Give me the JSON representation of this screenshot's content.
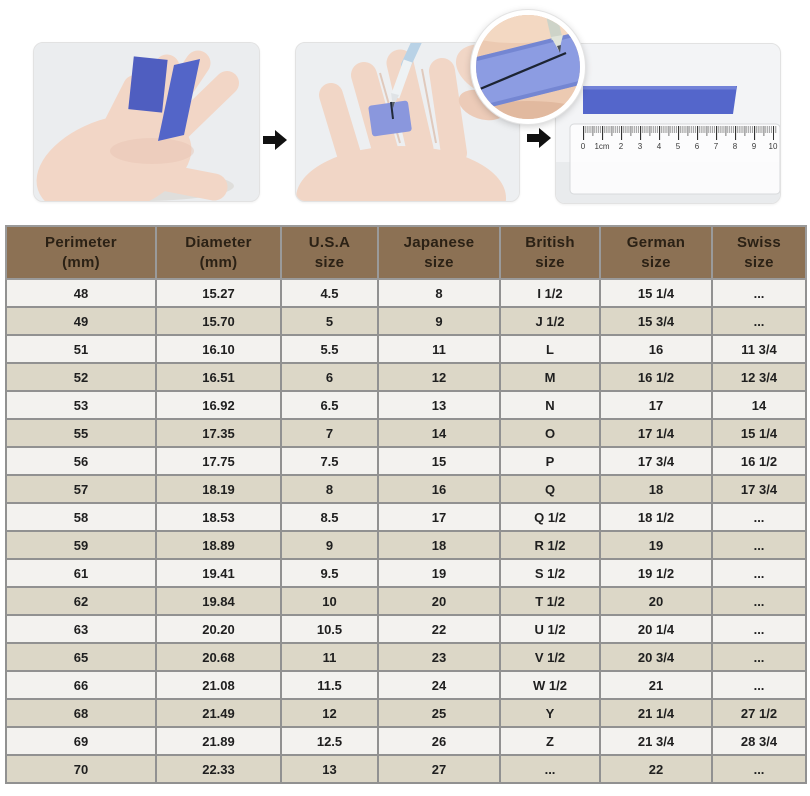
{
  "colors": {
    "header_bg": "#8c7154",
    "header_text": "#2b2115",
    "row_light": "#f3f2ef",
    "row_beige": "#dcd7c7",
    "grid_line": "#919191",
    "tape_blue": "#5060c2",
    "band_blue": "#8a9ae0",
    "arrow_black": "#111111"
  },
  "steps": {
    "step1_icon": "hand-with-paper-strips",
    "step2_icon": "wrap-strip-and-mark-finger",
    "inset_icon": "marked-strip-closeup",
    "step3_icon": "measure-strip-with-ruler",
    "arrow_icon": "right-arrow"
  },
  "ruler": {
    "labels": [
      "0",
      "1cm",
      "2",
      "3",
      "4",
      "5",
      "6",
      "7",
      "8",
      "9",
      "10"
    ]
  },
  "chart_data": {
    "type": "table",
    "columns": [
      "Perimeter (mm)",
      "Diameter (mm)",
      "U.S.A size",
      "Japanese size",
      "British size",
      "German size",
      "Swiss size"
    ],
    "header_lines": [
      [
        "Perimeter",
        "(mm)"
      ],
      [
        "Diameter",
        "(mm)"
      ],
      [
        "U.S.A",
        "size"
      ],
      [
        "Japanese",
        "size"
      ],
      [
        "British",
        "size"
      ],
      [
        "German",
        "size"
      ],
      [
        "Swiss",
        "size"
      ]
    ],
    "rows": [
      [
        "48",
        "15.27",
        "4.5",
        "8",
        "I 1/2",
        "15 1/4",
        "..."
      ],
      [
        "49",
        "15.70",
        "5",
        "9",
        "J 1/2",
        "15 3/4",
        "..."
      ],
      [
        "51",
        "16.10",
        "5.5",
        "11",
        "L",
        "16",
        "11 3/4"
      ],
      [
        "52",
        "16.51",
        "6",
        "12",
        "M",
        "16 1/2",
        "12 3/4"
      ],
      [
        "53",
        "16.92",
        "6.5",
        "13",
        "N",
        "17",
        "14"
      ],
      [
        "55",
        "17.35",
        "7",
        "14",
        "O",
        "17 1/4",
        "15 1/4"
      ],
      [
        "56",
        "17.75",
        "7.5",
        "15",
        "P",
        "17 3/4",
        "16 1/2"
      ],
      [
        "57",
        "18.19",
        "8",
        "16",
        "Q",
        "18",
        "17 3/4"
      ],
      [
        "58",
        "18.53",
        "8.5",
        "17",
        "Q 1/2",
        "18 1/2",
        "..."
      ],
      [
        "59",
        "18.89",
        "9",
        "18",
        "R 1/2",
        "19",
        "..."
      ],
      [
        "61",
        "19.41",
        "9.5",
        "19",
        "S 1/2",
        "19 1/2",
        "..."
      ],
      [
        "62",
        "19.84",
        "10",
        "20",
        "T 1/2",
        "20",
        "..."
      ],
      [
        "63",
        "20.20",
        "10.5",
        "22",
        "U 1/2",
        "20 1/4",
        "..."
      ],
      [
        "65",
        "20.68",
        "11",
        "23",
        "V 1/2",
        "20 3/4",
        "..."
      ],
      [
        "66",
        "21.08",
        "11.5",
        "24",
        "W 1/2",
        "21",
        "..."
      ],
      [
        "68",
        "21.49",
        "12",
        "25",
        "Y",
        "21 1/4",
        "27 1/2"
      ],
      [
        "69",
        "21.89",
        "12.5",
        "26",
        "Z",
        "21 3/4",
        "28 3/4"
      ],
      [
        "70",
        "22.33",
        "13",
        "27",
        "...",
        "22",
        "..."
      ]
    ]
  }
}
